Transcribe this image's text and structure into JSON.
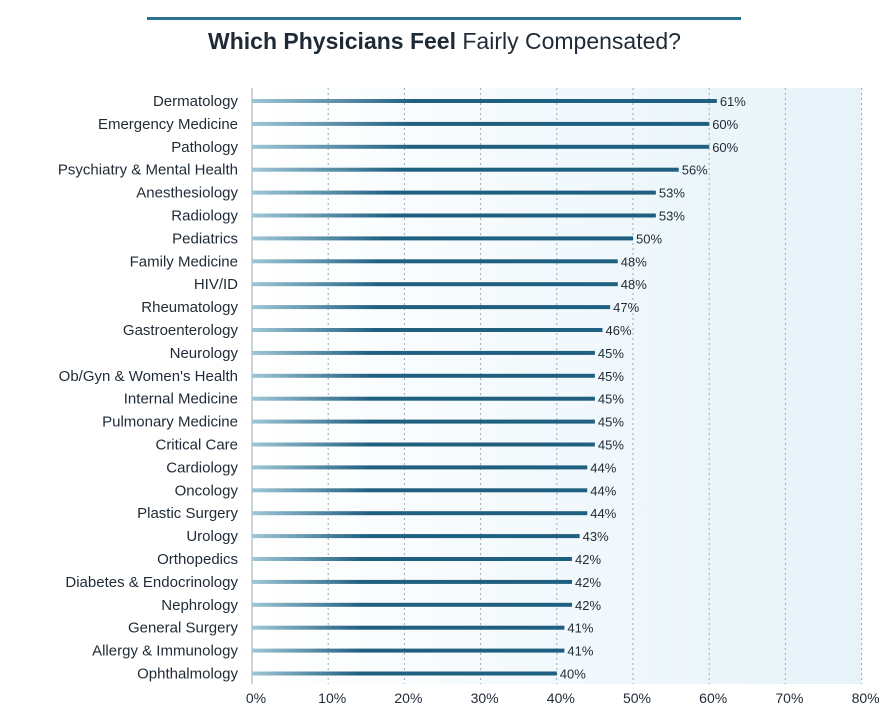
{
  "title": {
    "bold": "Which Physicians Feel",
    "normal": "Fairly Compensated?"
  },
  "colors": {
    "bar": "#1f5f80",
    "bar_light": "#9fc6d6",
    "plot_bg_left": "#ffffff",
    "plot_bg_right": "#e6f3f9",
    "grid": "#9aa9b2",
    "title_rule": "#2a6f8e"
  },
  "chart_data": {
    "type": "bar",
    "orientation": "horizontal",
    "title": "Which Physicians Feel Fairly Compensated?",
    "xlabel": "",
    "ylabel": "",
    "xlim": [
      0,
      80
    ],
    "x_ticks": [
      "0%",
      "10%",
      "20%",
      "30%",
      "40%",
      "50%",
      "60%",
      "70%",
      "80%"
    ],
    "grid": "vertical dotted",
    "categories": [
      "Dermatology",
      "Emergency Medicine",
      "Pathology",
      "Psychiatry & Mental Health",
      "Anesthesiology",
      "Radiology",
      "Pediatrics",
      "Family Medicine",
      "HIV/ID",
      "Rheumatology",
      "Gastroenterology",
      "Neurology",
      "Ob/Gyn & Women's Health",
      "Internal Medicine",
      "Pulmonary Medicine",
      "Critical Care",
      "Cardiology",
      "Oncology",
      "Plastic Surgery",
      "Urology",
      "Orthopedics",
      "Diabetes & Endocrinology",
      "Nephrology",
      "General Surgery",
      "Allergy & Immunology",
      "Ophthalmology"
    ],
    "values": [
      61,
      60,
      60,
      56,
      53,
      53,
      50,
      48,
      48,
      47,
      46,
      45,
      45,
      45,
      45,
      45,
      44,
      44,
      44,
      43,
      42,
      42,
      42,
      41,
      41,
      40
    ],
    "value_labels": [
      "61%",
      "60%",
      "60%",
      "56%",
      "53%",
      "53%",
      "50%",
      "48%",
      "48%",
      "47%",
      "46%",
      "45%",
      "45%",
      "45%",
      "45%",
      "45%",
      "44%",
      "44%",
      "44%",
      "43%",
      "42%",
      "42%",
      "42%",
      "41%",
      "41%",
      "40%"
    ]
  }
}
